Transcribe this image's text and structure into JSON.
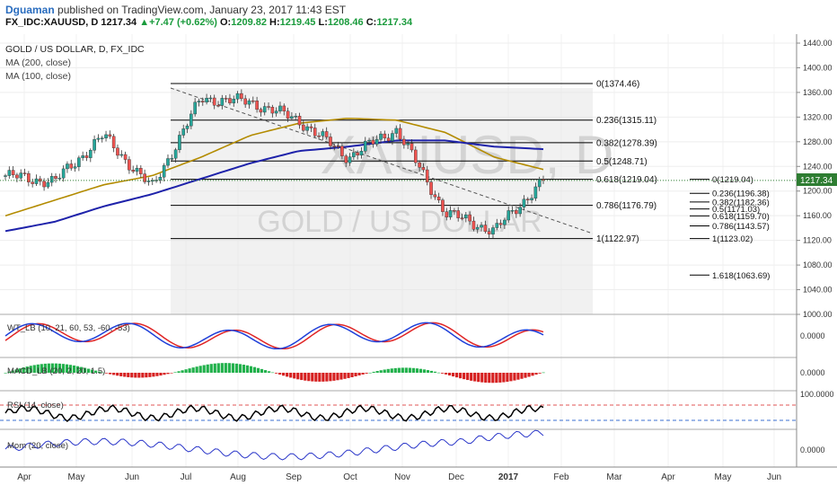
{
  "header": {
    "author": "Dguaman",
    "published": "published on TradingView.com, January 23, 2017 11:43 EST",
    "symbol": "FX_IDC:XAUUSD, D",
    "last": "1217.34",
    "change": "+7.47 (+0.62%)",
    "open_label": "O:",
    "open": "1209.82",
    "high_label": "H:",
    "high": "1219.45",
    "low_label": "L:",
    "low": "1208.46",
    "close_label": "C:",
    "close": "1217.34"
  },
  "legend": {
    "title": "GOLD / US DOLLAR, D, FX_IDC",
    "ma200": "MA (200, close)",
    "ma100": "MA (100, close)"
  },
  "watermark": {
    "symbol": "XAUUSD, D",
    "name": "GOLD / US DOLLAR"
  },
  "colors": {
    "up": "#26a69a",
    "down": "#ef5350",
    "ma200": "#1e22aa",
    "ma100": "#b38b00",
    "fib": "#000000",
    "price_tag": "#2e7d32",
    "wt1": "#1e3fd9",
    "wt2": "#e02424",
    "macd_pos": "#22b14c",
    "macd_neg": "#d62020",
    "rsi": "#000000",
    "mom": "#2a36c9"
  },
  "price_axis": {
    "min": 1000,
    "max": 1440,
    "ticks": [
      "1000.00",
      "1040.00",
      "1080.00",
      "1120.00",
      "1160.00",
      "1200.00",
      "1240.00",
      "1280.00",
      "1320.00",
      "1360.00",
      "1400.00",
      "1440.00"
    ],
    "current_tag": "1217.34",
    "current": 1217.34
  },
  "time_axis": {
    "labels": [
      "Apr",
      "May",
      "Jun",
      "Jul",
      "Aug",
      "Sep",
      "Oct",
      "Nov",
      "Dec",
      "2017",
      "Feb",
      "Mar",
      "Apr",
      "May",
      "Jun"
    ]
  },
  "fib_retracement": [
    {
      "label": "0(1374.46)",
      "price": 1374.46
    },
    {
      "label": "0.236(1315.11)",
      "price": 1315.11
    },
    {
      "label": "0.382(1278.39)",
      "price": 1278.39
    },
    {
      "label": "0.5(1248.71)",
      "price": 1248.71
    },
    {
      "label": "0.618(1219.04)",
      "price": 1219.04
    },
    {
      "label": "0.786(1176.79)",
      "price": 1176.79
    },
    {
      "label": "1(1122.97)",
      "price": 1122.97
    }
  ],
  "fib_extension": [
    {
      "label": "0(1219.04)",
      "price": 1219.04
    },
    {
      "label": "0.236(1196.38)",
      "price": 1196.38
    },
    {
      "label": "0.382(1182.36)",
      "price": 1182.36
    },
    {
      "label": "0.5(1171.03)",
      "price": 1171.03
    },
    {
      "label": "0.618(1159.70)",
      "price": 1159.7
    },
    {
      "label": "0.786(1143.57)",
      "price": 1143.57
    },
    {
      "label": "1(1123.02)",
      "price": 1123.02
    },
    {
      "label": "1.618(1063.69)",
      "price": 1063.69
    }
  ],
  "indicators": {
    "wt": {
      "label": "WT_LB (10, 21, 60, 53, -60, -53)",
      "zero": "0.0000"
    },
    "macd": {
      "label": "MACD_LB (20, 2, 20, 1.5)",
      "zero": "0.0000"
    },
    "rsi": {
      "label": "RSI (14, close)",
      "top": "100.0000"
    },
    "mom": {
      "label": "Mom (20, close)",
      "zero": "0.0000"
    }
  },
  "chart_data": {
    "type": "line",
    "title": "GOLD / US DOLLAR, D, FX_IDC",
    "x": [
      "Mar",
      "Apr",
      "May",
      "Jun",
      "Jul",
      "Aug",
      "Sep",
      "Oct",
      "Nov",
      "Dec",
      "Jan 2017",
      "Jan 23 2017"
    ],
    "series": [
      {
        "name": "Close",
        "values": [
          1225,
          1215,
          1290,
          1205,
          1350,
          1345,
          1315,
          1255,
          1300,
          1165,
          1135,
          1217.34
        ]
      },
      {
        "name": "MA (200, close)",
        "values": [
          1135,
          1150,
          1175,
          1195,
          1220,
          1245,
          1265,
          1272,
          1282,
          1282,
          1272,
          1268
        ]
      },
      {
        "name": "MA (100, close)",
        "values": [
          1160,
          1185,
          1210,
          1225,
          1255,
          1290,
          1310,
          1318,
          1315,
          1295,
          1255,
          1235
        ]
      }
    ],
    "ylim": [
      1000,
      1440
    ],
    "grid": true
  }
}
